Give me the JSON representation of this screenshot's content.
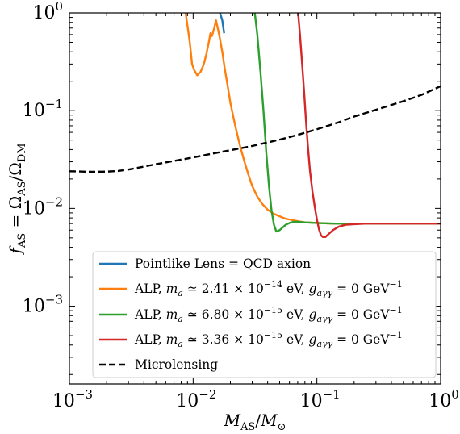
{
  "chart_data": {
    "type": "line",
    "xlabel": "M_AS/M_⊙",
    "ylabel": "f_AS = Ω_AS/Ω_DM",
    "xscale": "log",
    "yscale": "log",
    "xlim": [
      0.001,
      1
    ],
    "ylim": [
      0.00016,
      1
    ],
    "legend_position": "lower-right",
    "grid": false,
    "x_ticks": [
      {
        "value": 0.001,
        "label": "10",
        "exp": "−3"
      },
      {
        "value": 0.01,
        "label": "10",
        "exp": "−2"
      },
      {
        "value": 0.1,
        "label": "10",
        "exp": "−1"
      },
      {
        "value": 1,
        "label": "10",
        "exp": "0"
      }
    ],
    "y_ticks": [
      {
        "value": 0.001,
        "label": "10",
        "exp": "−3"
      },
      {
        "value": 0.01,
        "label": "10",
        "exp": "−2"
      },
      {
        "value": 0.1,
        "label": "10",
        "exp": "−1"
      },
      {
        "value": 1,
        "label": "10",
        "exp": "0"
      }
    ],
    "series": [
      {
        "name": "Pointlike Lens = QCD axion",
        "color": "#1f77b4",
        "dash": "solid",
        "x": [
          0.0165,
          0.0172,
          0.0178
        ],
        "y": [
          1.0,
          0.84,
          0.62
        ]
      },
      {
        "name": "ALP, m_a ≃ 2.41 × 10^−14 eV, g_aγγ = 0 GeV^−1",
        "color": "#ff7f0e",
        "dash": "solid",
        "x": [
          0.0087,
          0.0094,
          0.0098,
          0.0102,
          0.0108,
          0.0115,
          0.0122,
          0.0128,
          0.0133,
          0.0138,
          0.0142,
          0.0148,
          0.0153,
          0.0158,
          0.0164,
          0.0172,
          0.018,
          0.019,
          0.02,
          0.022,
          0.024,
          0.026,
          0.028,
          0.03,
          0.033,
          0.036,
          0.04,
          0.045,
          0.05,
          0.055,
          0.06,
          0.07,
          0.08,
          0.1,
          0.13,
          0.17,
          0.25,
          0.4,
          0.6,
          1.0
        ],
        "y": [
          1.0,
          0.5,
          0.3,
          0.26,
          0.23,
          0.25,
          0.3,
          0.38,
          0.48,
          0.62,
          0.58,
          0.7,
          0.84,
          0.7,
          0.56,
          0.4,
          0.27,
          0.18,
          0.12,
          0.068,
          0.043,
          0.03,
          0.022,
          0.017,
          0.0132,
          0.0112,
          0.0097,
          0.0088,
          0.0083,
          0.0079,
          0.0077,
          0.0074,
          0.0072,
          0.0071,
          0.007,
          0.007,
          0.007,
          0.007,
          0.007,
          0.007
        ]
      },
      {
        "name": "ALP, m_a ≃ 6.80 × 10^−15 eV, g_aγγ = 0 GeV^−1",
        "color": "#2ca02c",
        "dash": "solid",
        "x": [
          0.0315,
          0.033,
          0.035,
          0.037,
          0.039,
          0.041,
          0.043,
          0.045,
          0.047,
          0.05,
          0.053,
          0.056,
          0.06,
          0.065,
          0.07,
          0.08,
          0.1,
          0.14,
          0.2,
          0.3,
          0.5,
          0.8,
          1.0
        ],
        "y": [
          1.0,
          0.6,
          0.25,
          0.1,
          0.037,
          0.017,
          0.0095,
          0.0068,
          0.0058,
          0.006,
          0.0064,
          0.0068,
          0.0071,
          0.0073,
          0.0073,
          0.0072,
          0.0071,
          0.007,
          0.007,
          0.007,
          0.007,
          0.007,
          0.007
        ]
      },
      {
        "name": "ALP, m_a ≃ 3.36 × 10^−15 eV, g_aγγ = 0 GeV^−1",
        "color": "#d62728",
        "dash": "solid",
        "x": [
          0.0705,
          0.073,
          0.076,
          0.079,
          0.082,
          0.085,
          0.088,
          0.092,
          0.096,
          0.1,
          0.104,
          0.108,
          0.112,
          0.117,
          0.125,
          0.135,
          0.15,
          0.17,
          0.2,
          0.25,
          0.35,
          0.5,
          0.7,
          1.0
        ],
        "y": [
          1.0,
          0.6,
          0.3,
          0.15,
          0.072,
          0.04,
          0.024,
          0.015,
          0.0105,
          0.0077,
          0.0061,
          0.0053,
          0.0051,
          0.0051,
          0.0055,
          0.006,
          0.0065,
          0.0068,
          0.0069,
          0.007,
          0.007,
          0.007,
          0.007,
          0.007
        ]
      },
      {
        "name": "Microlensing",
        "color": "#000000",
        "dash": "dashed",
        "x": [
          0.001,
          0.0015,
          0.002,
          0.0025,
          0.003,
          0.004,
          0.005,
          0.007,
          0.01,
          0.015,
          0.02,
          0.03,
          0.05,
          0.07,
          0.1,
          0.15,
          0.2,
          0.3,
          0.5,
          0.7,
          1.0
        ],
        "y": [
          0.024,
          0.0237,
          0.0238,
          0.0242,
          0.025,
          0.0268,
          0.0283,
          0.0306,
          0.0332,
          0.0368,
          0.0394,
          0.0435,
          0.0505,
          0.0565,
          0.0645,
          0.076,
          0.087,
          0.102,
          0.125,
          0.145,
          0.178
        ]
      }
    ]
  }
}
